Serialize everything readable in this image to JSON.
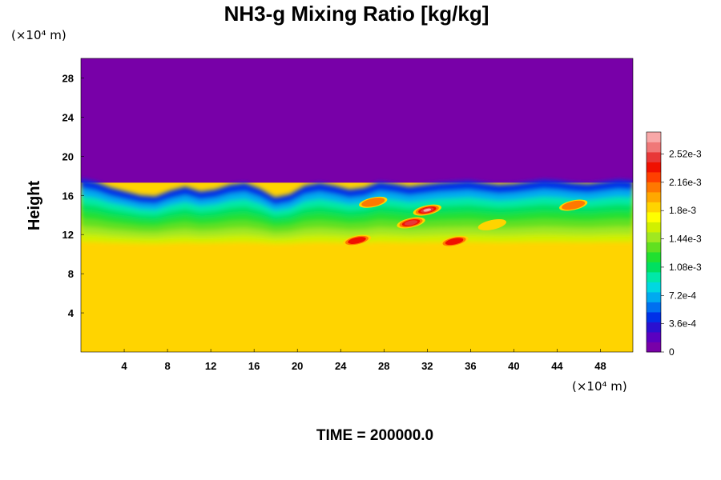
{
  "chart_data": {
    "type": "heatmap",
    "title": "NH3-g Mixing Ratio [kg/kg]",
    "ylabel": "Height",
    "xlabel": "",
    "x_unit": "(×10⁴ m)",
    "y_unit": "(×10⁴ m)",
    "xlim": [
      0,
      51
    ],
    "ylim": [
      0,
      30
    ],
    "x_ticks": [
      4,
      8,
      12,
      16,
      20,
      24,
      28,
      32,
      36,
      40,
      44,
      48
    ],
    "x_tick_labels": [
      "4",
      "8",
      "12",
      "16",
      "20",
      "24",
      "28",
      "32",
      "36",
      "40",
      "44",
      "48"
    ],
    "y_ticks": [
      4,
      8,
      12,
      16,
      20,
      24,
      28
    ],
    "y_tick_labels": [
      "4",
      "8",
      "12",
      "16",
      "20",
      "24",
      "28"
    ],
    "colorbar": {
      "range": [
        0,
        0.0028
      ],
      "labels": [
        "0",
        "3.6e-4",
        "7.2e-4",
        "1.08e-3",
        "1.44e-3",
        "1.8e-3",
        "2.16e-3",
        "2.52e-3"
      ],
      "label_values": [
        0,
        0.00036,
        0.00072,
        0.00108,
        0.00144,
        0.0018,
        0.00216,
        0.00252
      ],
      "colors": [
        "#7800a8",
        "#5a00c0",
        "#2a10d0",
        "#0030e8",
        "#0070f0",
        "#00aaf0",
        "#00d8e0",
        "#00e8a8",
        "#00e060",
        "#20e030",
        "#60e020",
        "#a0e820",
        "#d0f000",
        "#ffff00",
        "#ffd400",
        "#ffa800",
        "#ff7800",
        "#ff4000",
        "#f01000",
        "#e83838",
        "#f07878",
        "#f8a8a8"
      ]
    },
    "field": {
      "upper_value": 0,
      "lower_value": 0.0018,
      "lower_layer_top": 10.5,
      "boundary_top": [
        17.5,
        17.2,
        16.6,
        16.2,
        15.8,
        15.7,
        16.3,
        16.7,
        16.2,
        16.4,
        16.9,
        17.1,
        16.5,
        15.6,
        15.9,
        16.8,
        17.1,
        16.8,
        16.4,
        16.6,
        17.2,
        17.0,
        16.7,
        16.9,
        17.1,
        17.2,
        17.3,
        17.1,
        16.9,
        17.0,
        17.2,
        17.4,
        17.3,
        17.1,
        17.0,
        17.2,
        17.4,
        17.3
      ],
      "blobs": [
        {
          "x": 32,
          "y": 14.5,
          "value": 0.0028
        },
        {
          "x": 30.5,
          "y": 13.2,
          "value": 0.0025
        },
        {
          "x": 25.5,
          "y": 11.4,
          "value": 0.0024
        },
        {
          "x": 34.5,
          "y": 11.3,
          "value": 0.0023
        },
        {
          "x": 27,
          "y": 15.3,
          "value": 0.0022
        },
        {
          "x": 45.5,
          "y": 15.0,
          "value": 0.0022
        },
        {
          "x": 38,
          "y": 13.0,
          "value": 0.0019
        }
      ]
    }
  },
  "footer": {
    "time_label": "TIME = 200000.0"
  }
}
